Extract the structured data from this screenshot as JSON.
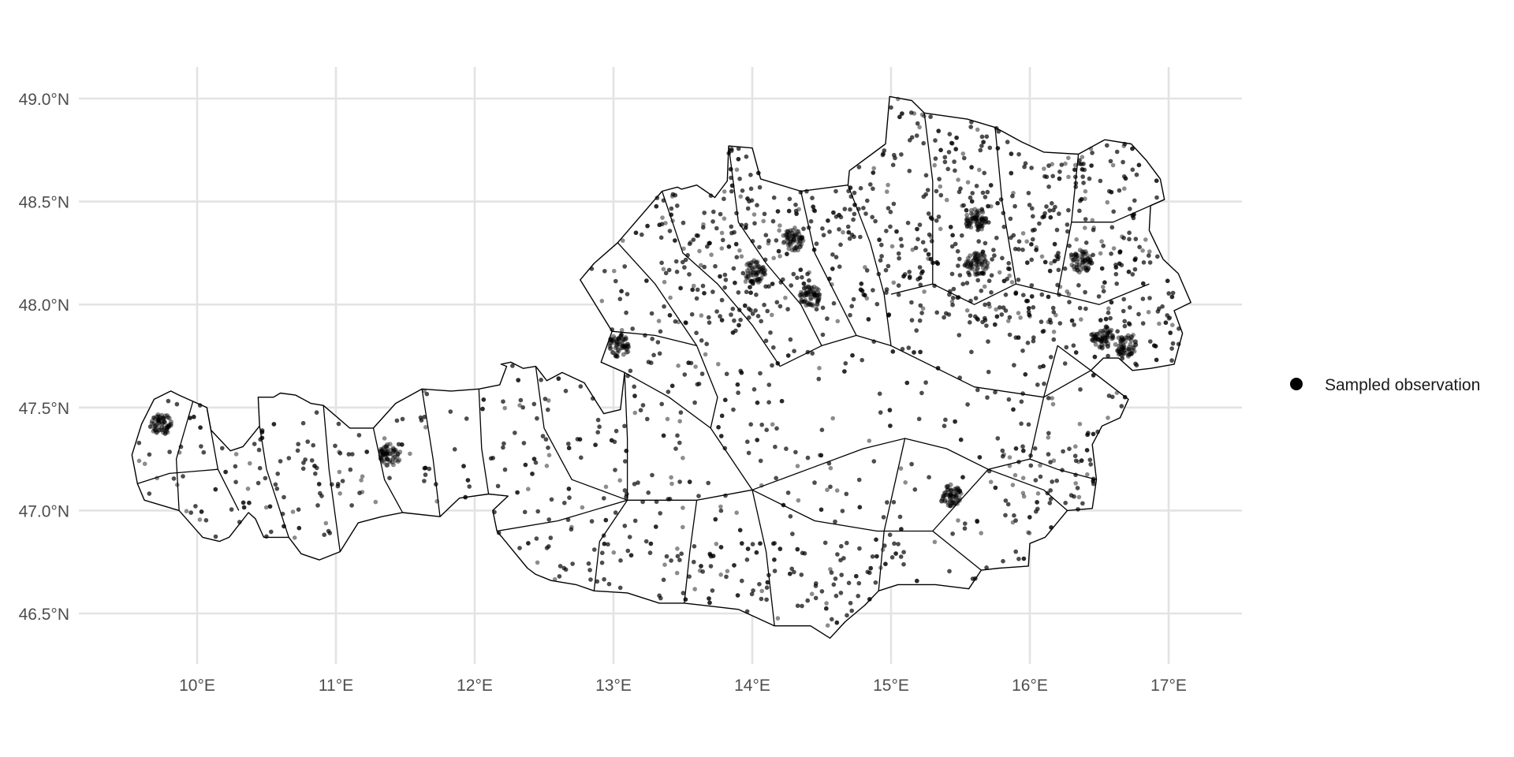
{
  "chart_data": {
    "type": "scatter",
    "subtype": "map-points",
    "region": "Austria (district boundaries)",
    "title": "",
    "xlabel": "",
    "ylabel": "",
    "xlim": [
      9.2,
      17.35
    ],
    "ylim": [
      46.25,
      49.15
    ],
    "x_ticks": [
      10,
      11,
      12,
      13,
      14,
      15,
      16,
      17
    ],
    "x_tick_labels": [
      "10°E",
      "11°E",
      "12°E",
      "13°E",
      "14°E",
      "15°E",
      "16°E",
      "17°E"
    ],
    "y_ticks": [
      46.5,
      47.0,
      47.5,
      48.0,
      48.5,
      49.0
    ],
    "y_tick_labels": [
      "46.5°N",
      "47.0°N",
      "47.5°N",
      "48.0°N",
      "48.5°N",
      "49.0°N"
    ],
    "grid": true,
    "legend": {
      "position": "right",
      "entries": [
        {
          "label": "Sampled observation",
          "color": "#000000",
          "marker": "circle"
        }
      ]
    },
    "point_color": "#000000",
    "point_alpha": 0.45,
    "point_count": "approximately 4000 (individually estimated density, positions approximated)",
    "dense_clusters": [
      {
        "lon": 16.37,
        "lat": 48.21
      },
      {
        "lon": 15.43,
        "lat": 47.07
      },
      {
        "lon": 14.29,
        "lat": 48.31
      },
      {
        "lon": 13.04,
        "lat": 47.8
      },
      {
        "lon": 11.39,
        "lat": 47.27
      },
      {
        "lon": 15.62,
        "lat": 48.2
      },
      {
        "lon": 14.02,
        "lat": 48.16
      },
      {
        "lon": 14.42,
        "lat": 48.04
      },
      {
        "lon": 16.53,
        "lat": 47.84
      },
      {
        "lon": 16.69,
        "lat": 47.8
      },
      {
        "lon": 15.61,
        "lat": 48.41
      },
      {
        "lon": 9.74,
        "lat": 47.42
      }
    ]
  }
}
